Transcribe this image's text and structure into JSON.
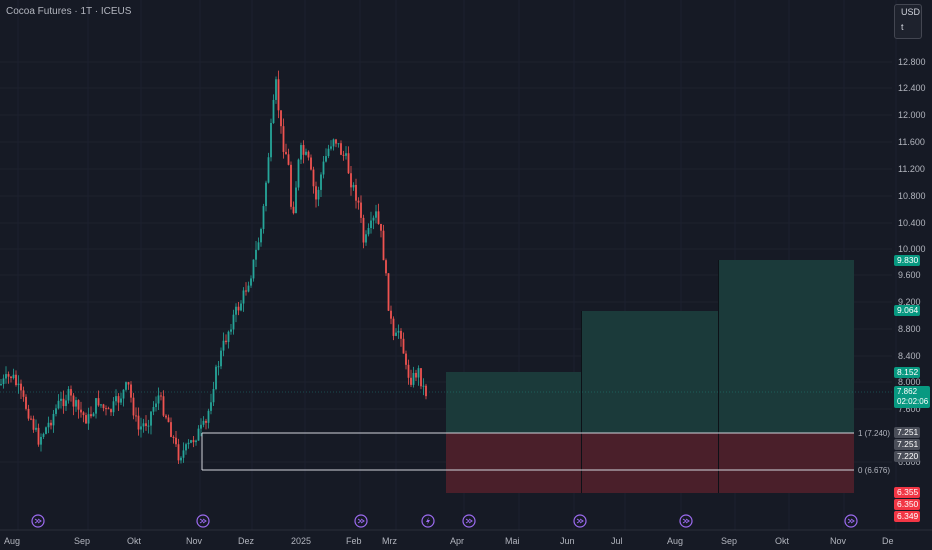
{
  "header": {
    "symbol_title": "Cocoa Futures · 1T · ICEUS"
  },
  "currency_box": {
    "currency": "USD",
    "unit": "t"
  },
  "colors": {
    "up": "#26a69a",
    "down": "#ef5350",
    "profit_zone": "#1b3a3a",
    "loss_zone": "#4a1f2a",
    "line": "#d1d4dc"
  },
  "price_axis": {
    "ticks": [
      "12.800",
      "12.400",
      "12.000",
      "11.600",
      "11.200",
      "10.800",
      "10.400",
      "10.000",
      "9.600",
      "9.200",
      "8.800",
      "8.400",
      "8.000",
      "7.600",
      "6.800"
    ]
  },
  "time_axis": {
    "labels": [
      "Aug",
      "Sep",
      "Okt",
      "Nov",
      "Dez",
      "2025",
      "Feb",
      "Mrz",
      "Apr",
      "Mai",
      "Jun",
      "Jul",
      "Aug",
      "Sep",
      "Okt",
      "Nov",
      "De"
    ]
  },
  "fib_levels": [
    {
      "label": "1 (7.240)"
    },
    {
      "label": "0 (6.676)"
    }
  ],
  "price_badges": {
    "target3": "9.830",
    "target2": "9.064",
    "target1": "8.152",
    "current_price": "7.862",
    "countdown": "02:02:06",
    "level_a": "7.251",
    "level_b": "7.251",
    "level_c": "7.220",
    "stop_a": "6.355",
    "stop_b": "6.350",
    "stop_c": "6.349"
  },
  "event_icons": [
    "dividend-icon",
    "dividend-icon",
    "dividend-icon",
    "flash-icon",
    "dividend-icon",
    "dividend-icon",
    "dividend-icon",
    "dividend-icon"
  ]
}
